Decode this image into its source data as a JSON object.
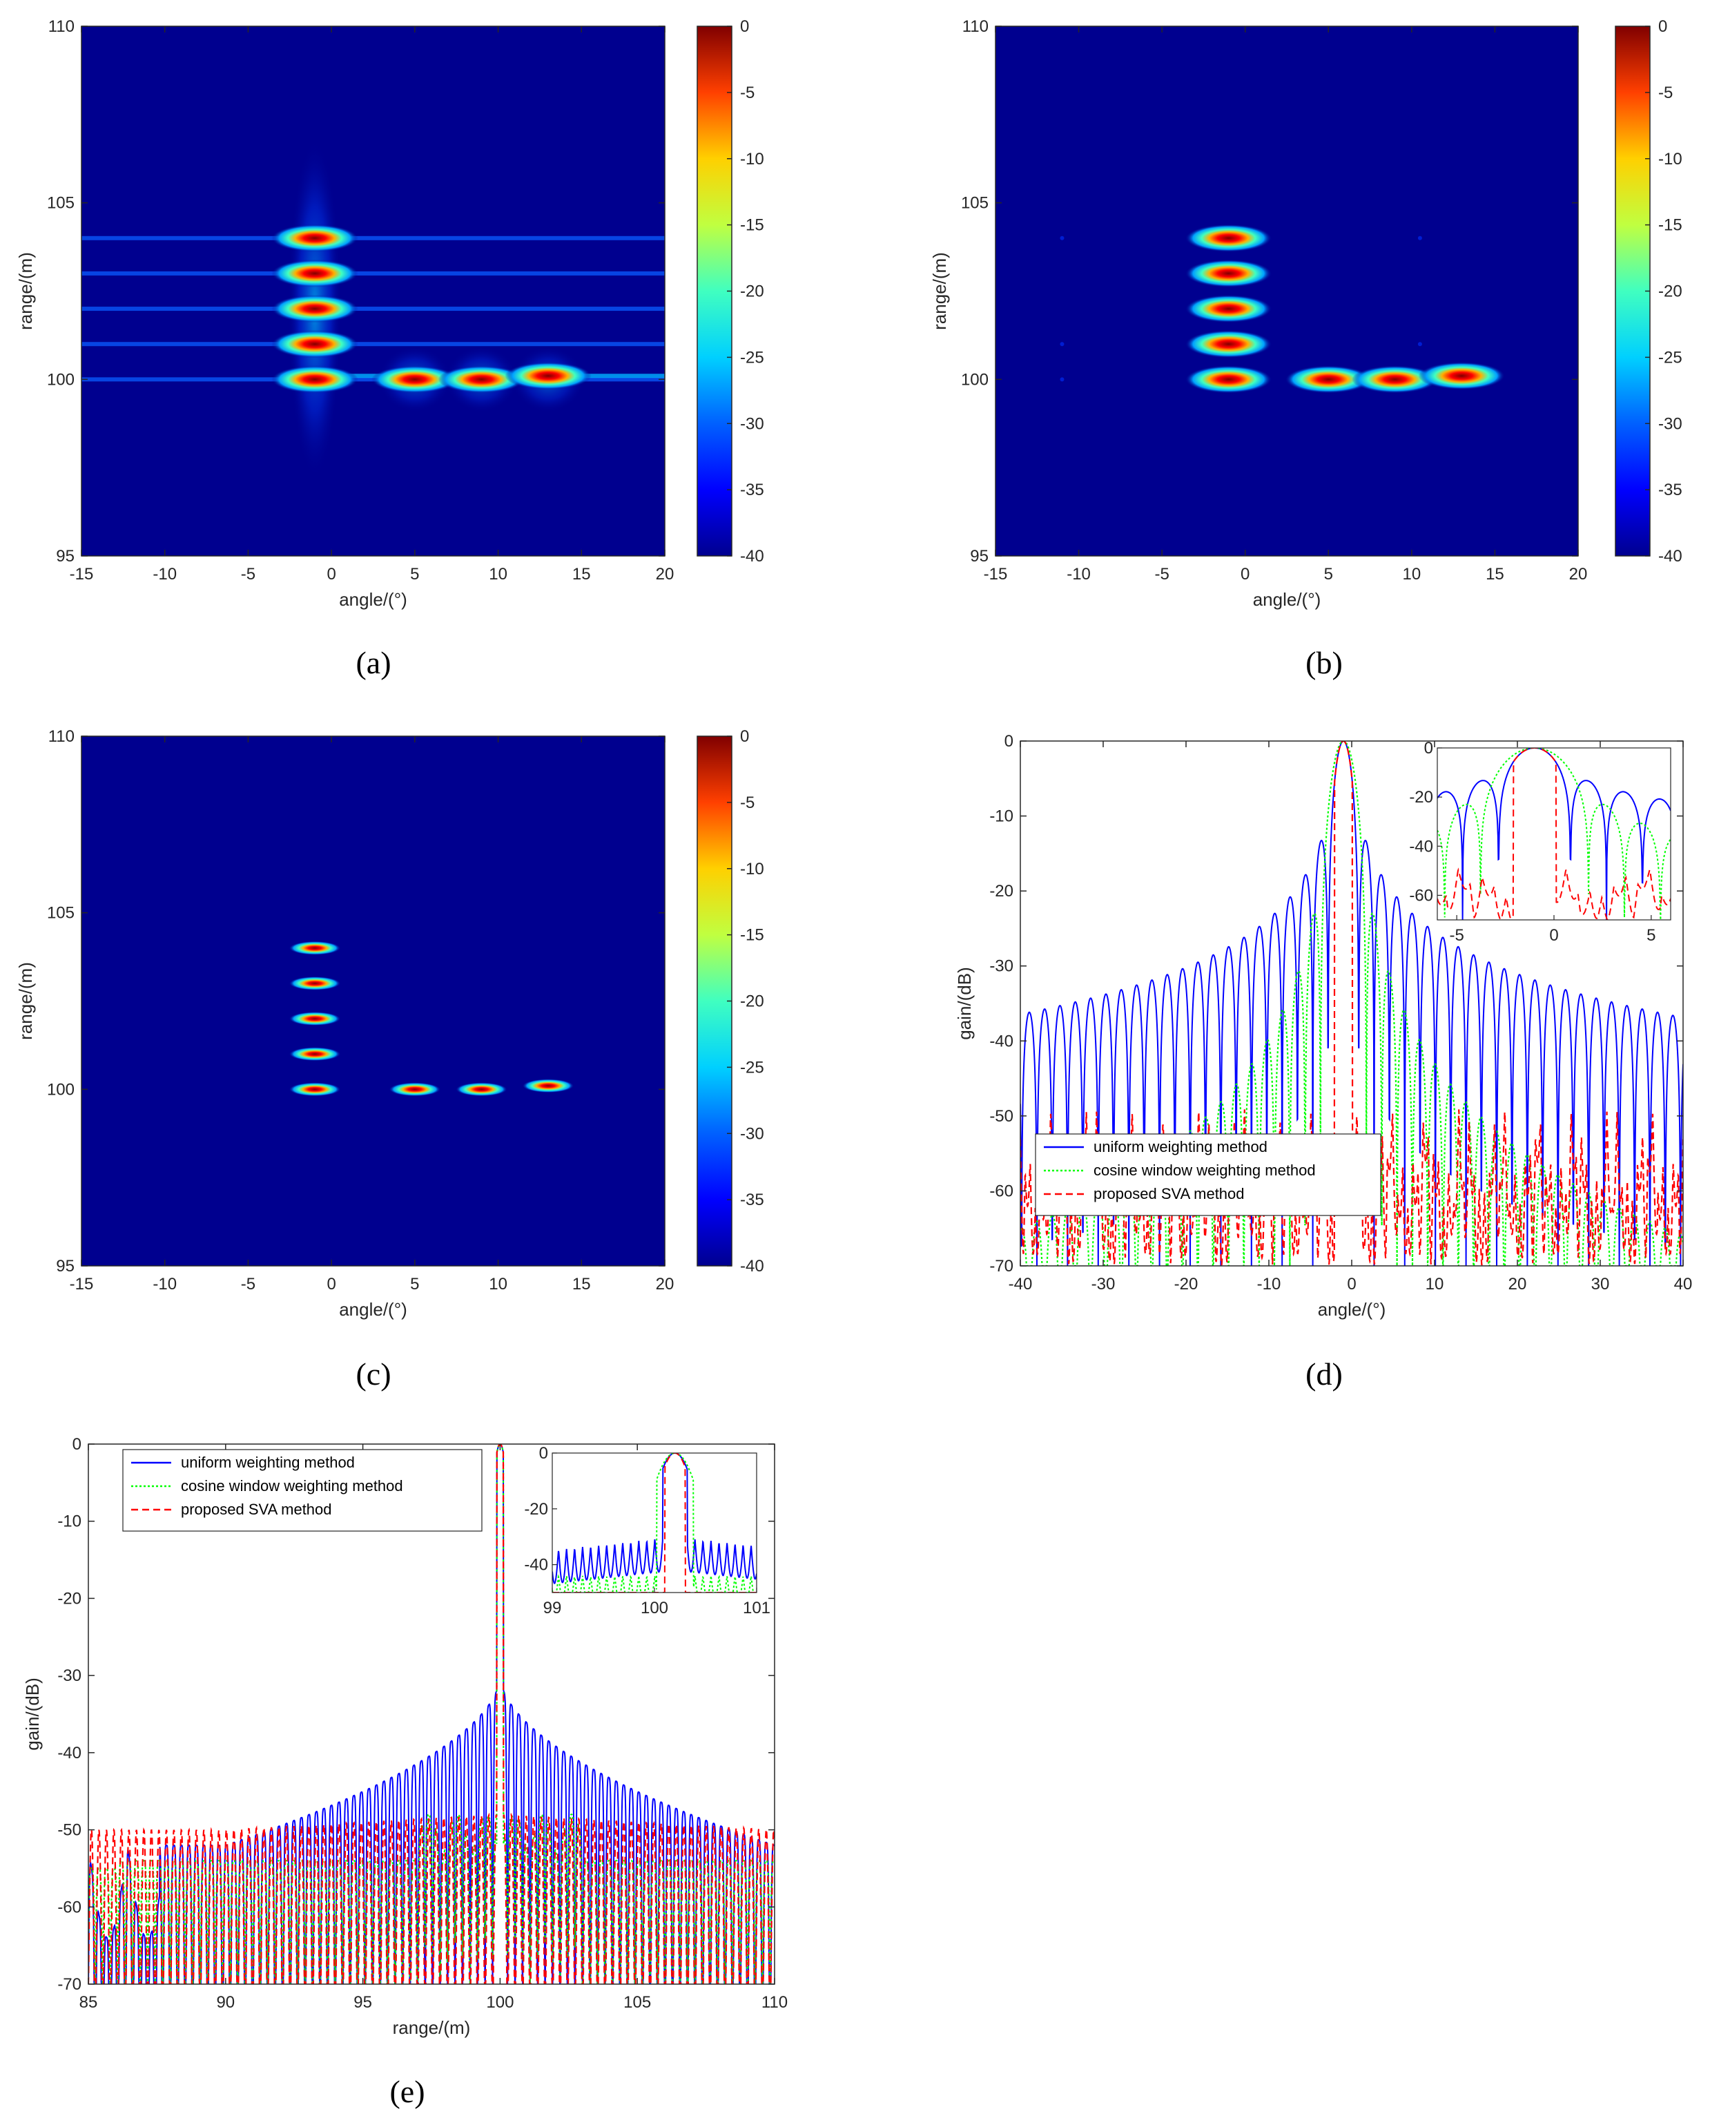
{
  "colors": {
    "background_map": "#00008f",
    "uniform": "#0000ff",
    "cosine": "#00ff00",
    "svaline": "#ff0000",
    "colormap": [
      "#00008f",
      "#0000ff",
      "#0080ff",
      "#00ffff",
      "#80ff80",
      "#ffff00",
      "#ff8000",
      "#ff0000",
      "#800000"
    ]
  },
  "panel_labels": [
    "(a)",
    "(b)",
    "(c)",
    "(d)",
    "(e)"
  ],
  "chart_data": [
    {
      "id": "a",
      "type": "heatmap",
      "xlabel": "angle/(°)",
      "ylabel": "range/(m)",
      "xlim": [
        -15,
        20
      ],
      "ylim": [
        95,
        110
      ],
      "xticks": [
        -15,
        -10,
        -5,
        0,
        5,
        10,
        15,
        20
      ],
      "yticks": [
        95,
        100,
        105,
        110
      ],
      "colorbar": {
        "ticks": [
          0,
          -5,
          -10,
          -15,
          -20,
          -25,
          -30,
          -35,
          -40
        ],
        "range": [
          -40,
          0
        ]
      },
      "targets": [
        {
          "angle": -1,
          "range": 104
        },
        {
          "angle": -1,
          "range": 103
        },
        {
          "angle": -1,
          "range": 102
        },
        {
          "angle": -1,
          "range": 101
        },
        {
          "angle": -1,
          "range": 100
        },
        {
          "angle": 5,
          "range": 100
        },
        {
          "angle": 9,
          "range": 100
        },
        {
          "angle": 13,
          "range": 100.1
        }
      ]
    },
    {
      "id": "b",
      "type": "heatmap",
      "xlabel": "angle/(°)",
      "ylabel": "range/(m)",
      "xlim": [
        -15,
        20
      ],
      "ylim": [
        95,
        110
      ],
      "xticks": [
        -15,
        -10,
        -5,
        0,
        5,
        10,
        15,
        20
      ],
      "yticks": [
        95,
        100,
        105,
        110
      ],
      "colorbar": {
        "ticks": [
          0,
          -5,
          -10,
          -15,
          -20,
          -25,
          -30,
          -35,
          -40
        ],
        "range": [
          -40,
          0
        ]
      },
      "targets": [
        {
          "angle": -1,
          "range": 104
        },
        {
          "angle": -1,
          "range": 103
        },
        {
          "angle": -1,
          "range": 102
        },
        {
          "angle": -1,
          "range": 101
        },
        {
          "angle": -1,
          "range": 100
        },
        {
          "angle": 5,
          "range": 100
        },
        {
          "angle": 9,
          "range": 100
        },
        {
          "angle": 13,
          "range": 100.1
        }
      ]
    },
    {
      "id": "c",
      "type": "heatmap",
      "xlabel": "angle/(°)",
      "ylabel": "range/(m)",
      "xlim": [
        -15,
        20
      ],
      "ylim": [
        95,
        110
      ],
      "xticks": [
        -15,
        -10,
        -5,
        0,
        5,
        10,
        15,
        20
      ],
      "yticks": [
        95,
        100,
        105,
        110
      ],
      "colorbar": {
        "ticks": [
          0,
          -5,
          -10,
          -15,
          -20,
          -25,
          -30,
          -35,
          -40
        ],
        "range": [
          -40,
          0
        ]
      },
      "targets": [
        {
          "angle": -1,
          "range": 104
        },
        {
          "angle": -1,
          "range": 103
        },
        {
          "angle": -1,
          "range": 102
        },
        {
          "angle": -1,
          "range": 101
        },
        {
          "angle": -1,
          "range": 100
        },
        {
          "angle": 5,
          "range": 100
        },
        {
          "angle": 9,
          "range": 100
        },
        {
          "angle": 13,
          "range": 100.1
        }
      ]
    },
    {
      "id": "d",
      "type": "line",
      "xlabel": "angle/(°)",
      "ylabel": "gain/(dB)",
      "xlim": [
        -40,
        40
      ],
      "ylim": [
        -70,
        0
      ],
      "xticks": [
        -40,
        -30,
        -20,
        -10,
        0,
        10,
        20,
        30,
        40
      ],
      "yticks": [
        0,
        -10,
        -20,
        -30,
        -40,
        -50,
        -60,
        -70
      ],
      "legend": [
        "uniform weighting method",
        "cosine window weighting method",
        "proposed SVA method"
      ],
      "legend_position": "lower-center",
      "peak_angle": -1,
      "series": [
        {
          "name": "uniform weighting method",
          "mainlobe_halfwidth": 1.4,
          "first_sidelobe_db": -13,
          "far_sidelobe_db": -37,
          "lobe_spacing": 1.85
        },
        {
          "name": "cosine window weighting method",
          "mainlobe_halfwidth": 2.0,
          "sidelobe_db": -40,
          "lobe_spacing": 1.85
        },
        {
          "name": "proposed SVA method",
          "mainlobe_halfwidth": 1.4,
          "sidelobe_db_range": [
            -70,
            -43
          ]
        }
      ],
      "inset": {
        "xlim": [
          -6,
          6
        ],
        "ylim": [
          -70,
          0
        ],
        "xticks": [
          -5,
          0,
          5
        ],
        "yticks": [
          0,
          -20,
          -40,
          -60
        ]
      }
    },
    {
      "id": "e",
      "type": "line",
      "xlabel": "range/(m)",
      "ylabel": "gain/(dB)",
      "xlim": [
        85,
        110
      ],
      "ylim": [
        -70,
        0
      ],
      "xticks": [
        85,
        90,
        95,
        100,
        105,
        110
      ],
      "yticks": [
        0,
        -10,
        -20,
        -30,
        -40,
        -50,
        -60,
        -70
      ],
      "legend": [
        "uniform weighting method",
        "cosine window weighting method",
        "proposed SVA method"
      ],
      "legend_position": "upper-left",
      "peak_range": 100,
      "series": [
        {
          "name": "uniform weighting method",
          "near_sidelobe_db": -30,
          "far_sidelobe_db": -52
        },
        {
          "name": "cosine window weighting method",
          "sidelobe_db": -55
        },
        {
          "name": "proposed SVA method",
          "sidelobe_db_range": [
            -70,
            -48
          ]
        }
      ],
      "inset": {
        "xlim": [
          99,
          101
        ],
        "ylim": [
          -50,
          0
        ],
        "xticks": [
          99,
          100,
          101
        ],
        "yticks": [
          0,
          -20,
          -40
        ]
      }
    }
  ]
}
